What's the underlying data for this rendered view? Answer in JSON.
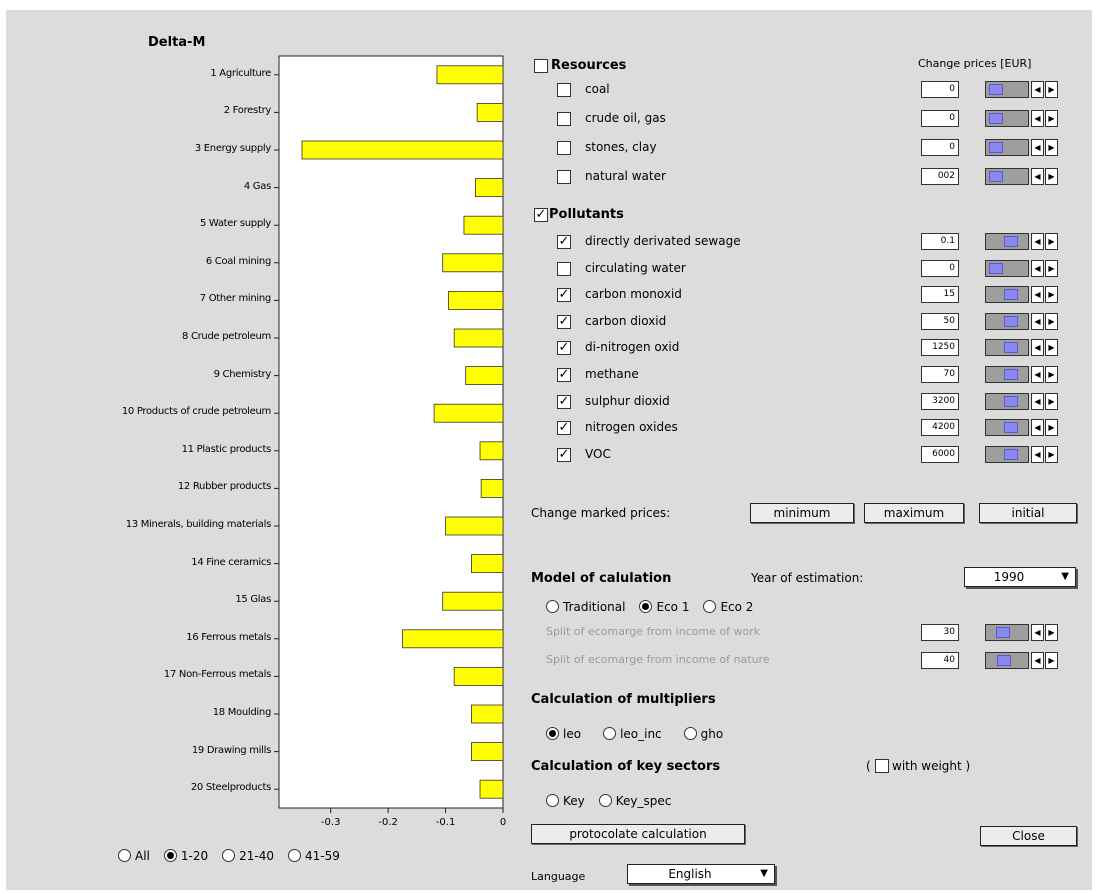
{
  "chart_data": {
    "type": "bar",
    "orientation": "horizontal",
    "title": "Delta-M",
    "categories": [
      "1 Agriculture",
      "2 Forestry",
      "3 Energy supply",
      "4 Gas",
      "5 Water supply",
      "6 Coal mining",
      "7 Other mining",
      "8 Crude petroleum",
      "9 Chemistry",
      "10 Products of crude petroleum",
      "11 Plastic products",
      "12 Rubber products",
      "13 Minerals, building materials",
      "14 Fine ceramics",
      "15 Glas",
      "16 Ferrous metals",
      "17 Non-Ferrous metals",
      "18 Moulding",
      "19 Drawing mills",
      "20 Steelproducts"
    ],
    "values": [
      -0.115,
      -0.045,
      -0.35,
      -0.048,
      -0.068,
      -0.105,
      -0.095,
      -0.085,
      -0.065,
      -0.12,
      -0.04,
      -0.038,
      -0.1,
      -0.055,
      -0.105,
      -0.175,
      -0.085,
      -0.055,
      -0.055,
      -0.04
    ],
    "xticks": [
      "-0.3",
      "-0.2",
      "-0.1",
      "0"
    ],
    "xlim": [
      -0.39,
      0
    ],
    "bar_color": "#ffff00"
  },
  "range_options": [
    {
      "label": "All",
      "selected": false
    },
    {
      "label": "1-20",
      "selected": true
    },
    {
      "label": "21-40",
      "selected": false
    },
    {
      "label": "41-59",
      "selected": false
    }
  ],
  "resources": {
    "title": "Resources",
    "checked": false,
    "header": "Change prices [EUR]",
    "items": [
      {
        "label": "coal",
        "checked": false,
        "value": "0",
        "slider": 0.05
      },
      {
        "label": "crude oil, gas",
        "checked": false,
        "value": "0",
        "slider": 0.05
      },
      {
        "label": "stones, clay",
        "checked": false,
        "value": "0",
        "slider": 0.05
      },
      {
        "label": "natural water",
        "checked": false,
        "value": "002",
        "slider": 0.05
      }
    ]
  },
  "pollutants": {
    "title": "Pollutants",
    "checked": true,
    "items": [
      {
        "label": "directly derivated sewage",
        "checked": true,
        "value": "0.1",
        "slider": 0.6
      },
      {
        "label": "circulating water",
        "checked": false,
        "value": "0",
        "slider": 0.05
      },
      {
        "label": "carbon monoxid",
        "checked": true,
        "value": "15",
        "slider": 0.6
      },
      {
        "label": "carbon dioxid",
        "checked": true,
        "value": "50",
        "slider": 0.6
      },
      {
        "label": "di-nitrogen oxid",
        "checked": true,
        "value": "1250",
        "slider": 0.6
      },
      {
        "label": "methane",
        "checked": true,
        "value": "70",
        "slider": 0.6
      },
      {
        "label": "sulphur dioxid",
        "checked": true,
        "value": "3200",
        "slider": 0.6
      },
      {
        "label": "nitrogen oxides",
        "checked": true,
        "value": "4200",
        "slider": 0.6
      },
      {
        "label": "VOC",
        "checked": true,
        "value": "6000",
        "slider": 0.6
      }
    ]
  },
  "change_marked": {
    "label": "Change  marked prices:",
    "buttons": [
      "minimum",
      "maximum",
      "initial"
    ]
  },
  "model": {
    "title": "Model of calulation",
    "year_label": "Year of estimation:",
    "year_value": "1990",
    "options": [
      {
        "label": "Traditional",
        "selected": false
      },
      {
        "label": "Eco 1",
        "selected": true
      },
      {
        "label": "Eco 2",
        "selected": false
      }
    ],
    "splits": [
      {
        "label": "Split of ecomarge from income of work",
        "value": "30",
        "slider": 0.3
      },
      {
        "label": "Split of ecomarge from income of nature",
        "value": "40",
        "slider": 0.35
      }
    ]
  },
  "multipliers": {
    "title": "Calculation of multipliers",
    "options": [
      {
        "label": "leo",
        "selected": true
      },
      {
        "label": "leo_inc",
        "selected": false
      },
      {
        "label": "gho",
        "selected": false
      }
    ]
  },
  "key_sectors": {
    "title": "Calculation of key sectors",
    "with_weight_open": "(",
    "with_weight_label": "with weight )",
    "with_weight_checked": false,
    "options": [
      {
        "label": "Key",
        "selected": false
      },
      {
        "label": "Key_spec",
        "selected": false
      }
    ]
  },
  "protocol_button": "protocolate calculation",
  "close_button": "Close",
  "language": {
    "label": "Language",
    "value": "English"
  }
}
